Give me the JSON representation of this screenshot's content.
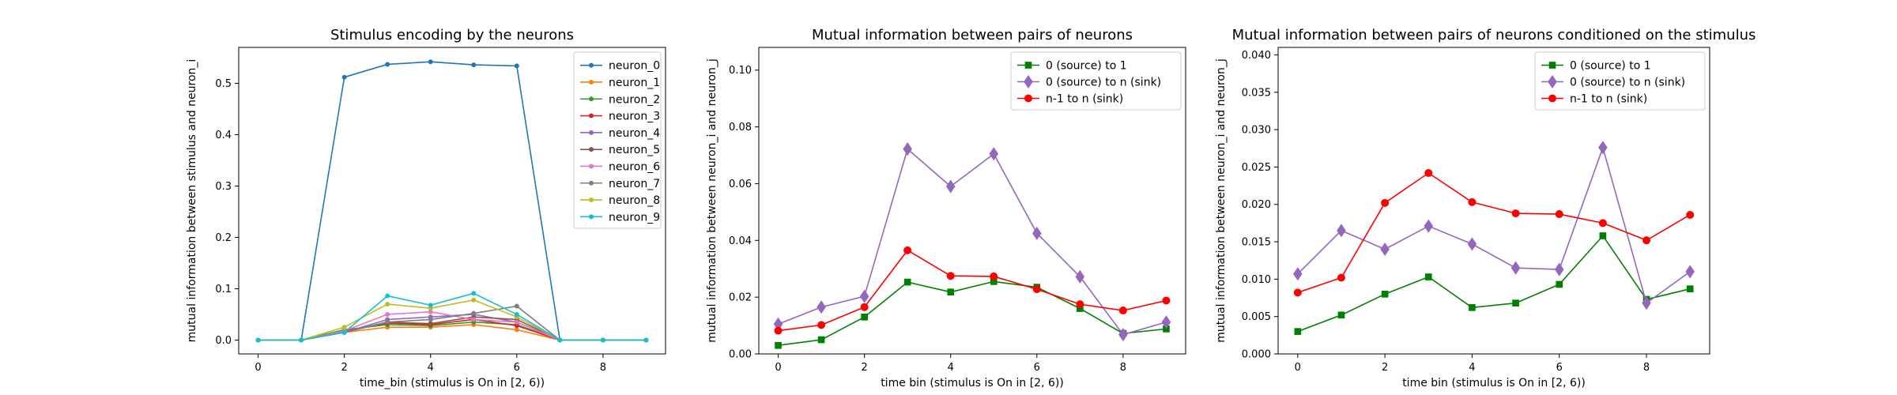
{
  "chart_data": [
    {
      "type": "line",
      "title": "Stimulus encoding by the neurons",
      "xlabel": "time_bin (stimulus is On in [2, 6))",
      "ylabel": "mutual information between stimulus and neuron_i",
      "xlim": [
        -0.45,
        9.45
      ],
      "ylim": [
        -0.027,
        0.57
      ],
      "xticks": [
        "0",
        "2",
        "4",
        "6",
        "8"
      ],
      "xtick_values": [
        0,
        2,
        4,
        6,
        8
      ],
      "yticks": [
        "0.0",
        "0.1",
        "0.2",
        "0.3",
        "0.4",
        "0.5"
      ],
      "ytick_values": [
        0,
        0.1,
        0.2,
        0.3,
        0.4,
        0.5
      ],
      "grid": false,
      "legend_position": "top-right",
      "x": [
        0,
        1,
        2,
        3,
        4,
        5,
        6,
        7,
        8,
        9
      ],
      "series": [
        {
          "name": "neuron_0",
          "color": "#1f77b4",
          "marker": "dot",
          "values": [
            0.0,
            0.0,
            0.512,
            0.537,
            0.542,
            0.536,
            0.534,
            0.0,
            0.0,
            0.0
          ]
        },
        {
          "name": "neuron_1",
          "color": "#ff7f0e",
          "marker": "dot",
          "values": [
            0.0,
            0.0,
            0.015,
            0.025,
            0.025,
            0.03,
            0.02,
            0.0,
            0.0,
            0.0
          ]
        },
        {
          "name": "neuron_2",
          "color": "#2ca02c",
          "marker": "dot",
          "values": [
            0.0,
            0.0,
            0.02,
            0.03,
            0.028,
            0.035,
            0.03,
            0.0,
            0.0,
            0.0
          ]
        },
        {
          "name": "neuron_3",
          "color": "#d62728",
          "marker": "dot",
          "values": [
            0.0,
            0.0,
            0.018,
            0.033,
            0.03,
            0.04,
            0.028,
            0.0,
            0.0,
            0.0
          ]
        },
        {
          "name": "neuron_4",
          "color": "#9467bd",
          "marker": "dot",
          "values": [
            0.0,
            0.0,
            0.015,
            0.04,
            0.045,
            0.05,
            0.035,
            0.0,
            0.0,
            0.0
          ]
        },
        {
          "name": "neuron_5",
          "color": "#8c564b",
          "marker": "dot",
          "values": [
            0.0,
            0.0,
            0.015,
            0.035,
            0.032,
            0.045,
            0.04,
            0.0,
            0.0,
            0.0
          ]
        },
        {
          "name": "neuron_6",
          "color": "#e377c2",
          "marker": "dot",
          "values": [
            0.0,
            0.0,
            0.018,
            0.05,
            0.055,
            0.04,
            0.035,
            0.0,
            0.0,
            0.0
          ]
        },
        {
          "name": "neuron_7",
          "color": "#7f7f7f",
          "marker": "dot",
          "values": [
            0.0,
            0.0,
            0.015,
            0.035,
            0.04,
            0.052,
            0.066,
            0.0,
            0.0,
            0.0
          ]
        },
        {
          "name": "neuron_8",
          "color": "#bcbd22",
          "marker": "dot",
          "values": [
            0.0,
            0.0,
            0.025,
            0.07,
            0.062,
            0.078,
            0.045,
            0.0,
            0.0,
            0.0
          ]
        },
        {
          "name": "neuron_9",
          "color": "#17becf",
          "marker": "dot",
          "values": [
            0.0,
            0.0,
            0.015,
            0.086,
            0.068,
            0.091,
            0.05,
            0.0,
            0.0,
            0.0
          ]
        }
      ]
    },
    {
      "type": "line",
      "title": "Mutual information between pairs of neurons",
      "xlabel": "time bin (stimulus is On in [2, 6))",
      "ylabel": "mutual information between neuron_i and neuron_j",
      "xlim": [
        -0.45,
        9.45
      ],
      "ylim": [
        0.0,
        0.108
      ],
      "xticks": [
        "0",
        "2",
        "4",
        "6",
        "8"
      ],
      "xtick_values": [
        0,
        2,
        4,
        6,
        8
      ],
      "yticks": [
        "0.00",
        "0.02",
        "0.04",
        "0.06",
        "0.08",
        "0.10"
      ],
      "ytick_values": [
        0,
        0.02,
        0.04,
        0.06,
        0.08,
        0.1
      ],
      "grid": false,
      "legend_position": "top-right",
      "x": [
        0,
        1,
        2,
        3,
        4,
        5,
        6,
        7,
        8,
        9
      ],
      "series": [
        {
          "name": "0 (source) to 1",
          "color": "#008000",
          "marker": "square",
          "values": [
            0.003,
            0.005,
            0.013,
            0.0253,
            0.0218,
            0.0255,
            0.0235,
            0.016,
            0.0072,
            0.0088
          ]
        },
        {
          "name": "0 (source) to n (sink)",
          "color": "#9467bd",
          "marker": "diamond",
          "values": [
            0.0105,
            0.0165,
            0.0203,
            0.0722,
            0.059,
            0.0705,
            0.0425,
            0.0272,
            0.0068,
            0.0112
          ]
        },
        {
          "name": "n-1 to n (sink)",
          "color": "#ff0000",
          "marker": "circle",
          "values": [
            0.0082,
            0.0102,
            0.0165,
            0.0365,
            0.0275,
            0.0273,
            0.0228,
            0.0175,
            0.0153,
            0.0188
          ]
        }
      ]
    },
    {
      "type": "line",
      "title": "Mutual information between pairs of neurons conditioned on the stimulus",
      "xlabel": "time bin (stimulus is On in [2, 6))",
      "ylabel": "mutual information between neuron_i and neuron_j",
      "xlim": [
        -0.45,
        9.45
      ],
      "ylim": [
        0.0,
        0.041
      ],
      "xticks": [
        "0",
        "2",
        "4",
        "6",
        "8"
      ],
      "xtick_values": [
        0,
        2,
        4,
        6,
        8
      ],
      "yticks": [
        "0.000",
        "0.005",
        "0.010",
        "0.015",
        "0.020",
        "0.025",
        "0.030",
        "0.035",
        "0.040"
      ],
      "ytick_values": [
        0,
        0.005,
        0.01,
        0.015,
        0.02,
        0.025,
        0.03,
        0.035,
        0.04
      ],
      "grid": false,
      "legend_position": "top-right",
      "x": [
        0,
        1,
        2,
        3,
        4,
        5,
        6,
        7,
        8,
        9
      ],
      "series": [
        {
          "name": "0 (source) to 1",
          "color": "#008000",
          "marker": "square",
          "values": [
            0.003,
            0.0052,
            0.008,
            0.0103,
            0.0062,
            0.0068,
            0.0093,
            0.0158,
            0.0073,
            0.0087
          ]
        },
        {
          "name": "0 (source) to n (sink)",
          "color": "#9467bd",
          "marker": "diamond",
          "values": [
            0.0107,
            0.0165,
            0.014,
            0.0171,
            0.0147,
            0.0115,
            0.0113,
            0.0276,
            0.0068,
            0.011
          ]
        },
        {
          "name": "n-1 to n (sink)",
          "color": "#ff0000",
          "marker": "circle",
          "values": [
            0.0082,
            0.0102,
            0.0202,
            0.0242,
            0.0203,
            0.0188,
            0.0187,
            0.0175,
            0.0152,
            0.0186
          ]
        }
      ]
    }
  ]
}
